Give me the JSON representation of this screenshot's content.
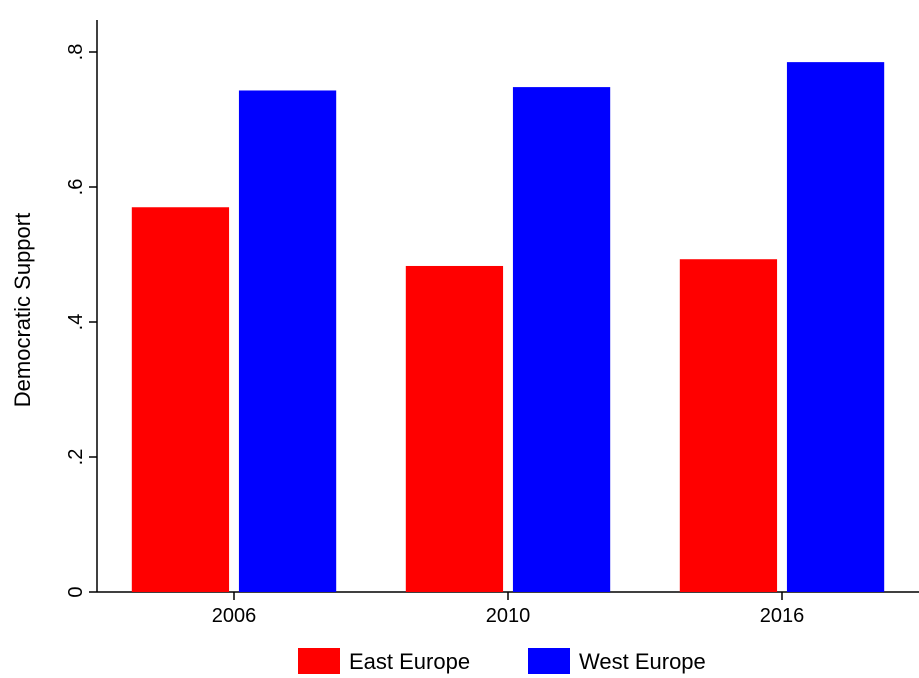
{
  "chart_data": {
    "type": "bar",
    "title": "",
    "xlabel": "",
    "ylabel": "Democratic Support",
    "categories": [
      "2006",
      "2010",
      "2016"
    ],
    "series": [
      {
        "name": "East Europe",
        "color": "#ff0000",
        "values": [
          0.57,
          0.483,
          0.493
        ]
      },
      {
        "name": "West Europe",
        "color": "#0000ff",
        "values": [
          0.743,
          0.748,
          0.785
        ]
      }
    ],
    "ylim": [
      0,
      0.8
    ],
    "yticks": [
      {
        "value": 0,
        "label": "0"
      },
      {
        "value": 0.2,
        "label": ".2"
      },
      {
        "value": 0.4,
        "label": ".4"
      },
      {
        "value": 0.6,
        "label": ".6"
      },
      {
        "value": 0.8,
        "label": ".8"
      }
    ],
    "grid": false,
    "legend_position": "bottom"
  }
}
